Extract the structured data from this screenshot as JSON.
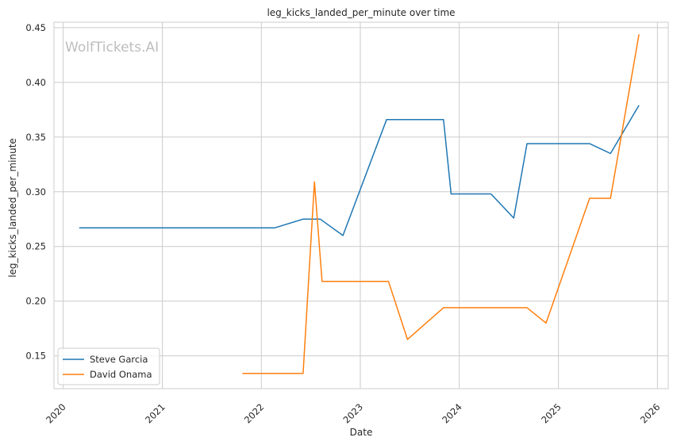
{
  "chart_data": {
    "type": "line",
    "title": "leg_kicks_landed_per_minute over time",
    "xlabel": "Date",
    "ylabel": "leg_kicks_landed_per_minute",
    "watermark": "WolfTickets.AI",
    "x_ticks": [
      "2020",
      "2021",
      "2022",
      "2023",
      "2024",
      "2025",
      "2026"
    ],
    "y_ticks": [
      "0.15",
      "0.20",
      "0.25",
      "0.30",
      "0.35",
      "0.40",
      "0.45"
    ],
    "xlim": [
      "2019-11-28",
      "2026-02-10"
    ],
    "ylim": [
      0.12,
      0.455
    ],
    "grid": true,
    "legend_position": "lower-left",
    "colors": {
      "Steve Garcia": "#1f77b4",
      "David Onama": "#ff7f0e"
    },
    "series": [
      {
        "name": "Steve Garcia",
        "x": [
          "2020-02-29",
          "2022-02-19",
          "2022-06-04",
          "2022-08-06",
          "2022-10-29",
          "2023-04-08",
          "2023-11-04",
          "2023-12-02",
          "2024-04-27",
          "2024-07-20",
          "2024-09-07",
          "2025-04-26",
          "2025-07-12",
          "2025-10-25"
        ],
        "values": [
          0.267,
          0.267,
          0.275,
          0.275,
          0.26,
          0.366,
          0.366,
          0.298,
          0.298,
          0.276,
          0.344,
          0.344,
          0.335,
          0.379
        ]
      },
      {
        "name": "David Onama",
        "x": [
          "2021-10-23",
          "2022-06-04",
          "2022-07-16",
          "2022-08-13",
          "2023-04-15",
          "2023-06-24",
          "2023-11-04",
          "2024-09-07",
          "2024-11-16",
          "2025-04-26",
          "2025-07-12",
          "2025-10-25"
        ],
        "values": [
          0.134,
          0.134,
          0.309,
          0.218,
          0.218,
          0.165,
          0.194,
          0.194,
          0.18,
          0.294,
          0.294,
          0.444
        ]
      }
    ]
  }
}
